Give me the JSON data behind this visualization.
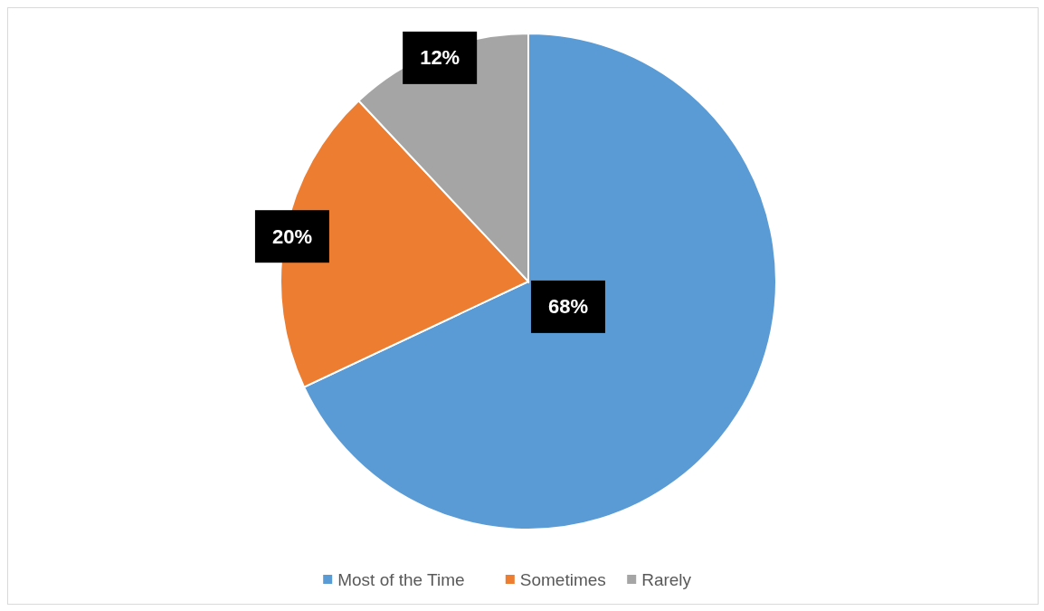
{
  "chart_data": {
    "type": "pie",
    "categories": [
      "Most of the Time",
      "Sometimes",
      "Rarely"
    ],
    "values": [
      68,
      20,
      12
    ],
    "colors": [
      "#5b9bd5",
      "#ed7d31",
      "#a5a5a5"
    ],
    "value_labels": [
      "68%",
      "20%",
      "12%"
    ],
    "legend": "bottom"
  }
}
